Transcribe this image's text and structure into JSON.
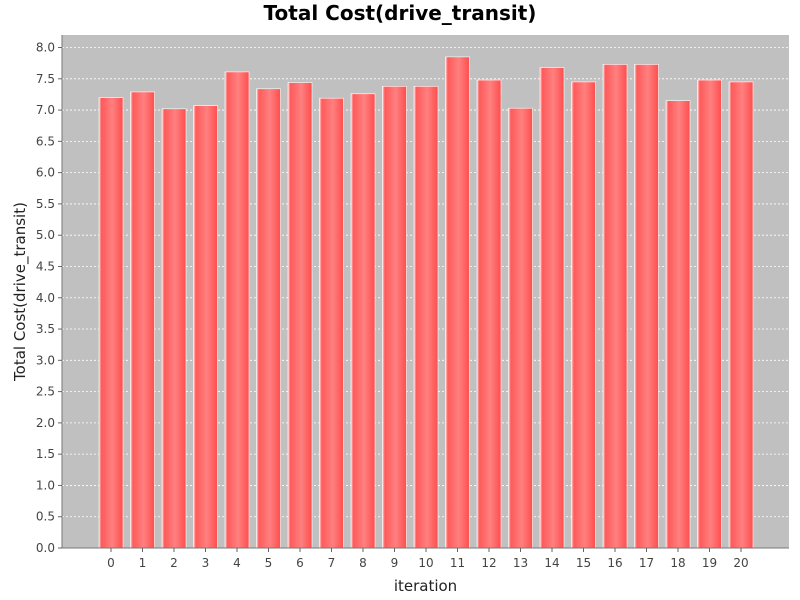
{
  "chart_data": {
    "type": "bar",
    "title": "Total Cost(drive_transit)",
    "xlabel": "iteration",
    "ylabel": "Total Cost(drive_transit)",
    "categories": [
      "0",
      "1",
      "2",
      "3",
      "4",
      "5",
      "6",
      "7",
      "8",
      "9",
      "10",
      "11",
      "12",
      "13",
      "14",
      "15",
      "16",
      "17",
      "18",
      "19",
      "20"
    ],
    "values": [
      7.2,
      7.29,
      7.02,
      7.07,
      7.61,
      7.34,
      7.44,
      7.19,
      7.26,
      7.38,
      7.38,
      7.85,
      7.48,
      7.03,
      7.68,
      7.45,
      7.73,
      7.73,
      7.15,
      7.48,
      7.45
    ],
    "ylim": [
      0,
      8.2
    ],
    "yticks": [
      "0.0",
      "0.5",
      "1.0",
      "1.5",
      "2.0",
      "2.5",
      "3.0",
      "3.5",
      "4.0",
      "4.5",
      "5.0",
      "5.5",
      "6.0",
      "6.5",
      "7.0",
      "7.5",
      "8.0"
    ],
    "grid": true,
    "legend": "none",
    "colors": {
      "plot_background": "#c0c0c0",
      "bar": "#ff5555",
      "bar_highlight": "#ff8a8a",
      "gridline": "#ffffff"
    }
  }
}
